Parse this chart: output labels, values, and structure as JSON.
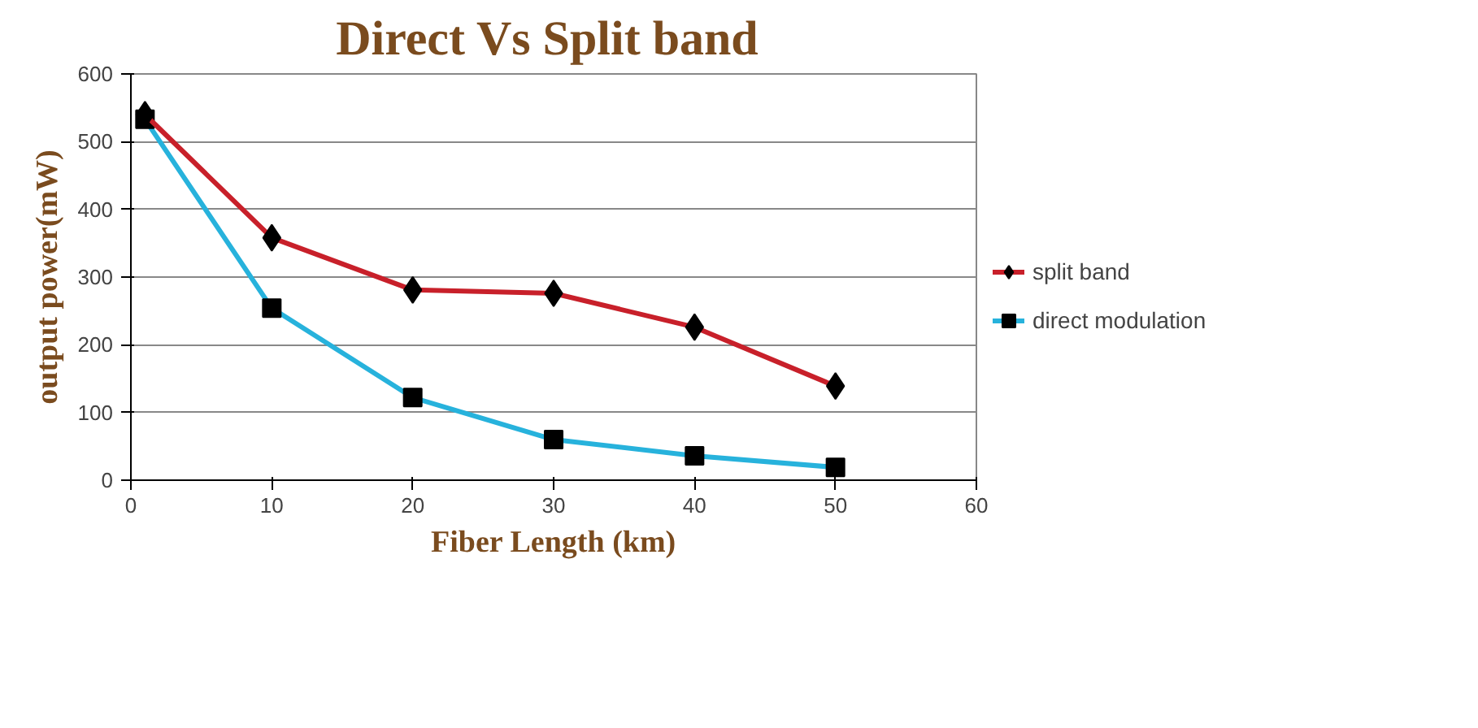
{
  "chart_data": {
    "type": "line",
    "title": "Direct  Vs Split band",
    "xlabel": "Fiber Length (km)",
    "ylabel": "output power(mW)",
    "x": [
      1,
      10,
      20,
      30,
      40,
      50
    ],
    "series": [
      {
        "name": "split band",
        "color": "#c8202a",
        "marker": "diamond",
        "values": [
          540,
          358,
          281,
          276,
          226,
          139
        ]
      },
      {
        "name": "direct modulation",
        "color": "#27b2dc",
        "marker": "square",
        "values": [
          533,
          254,
          122,
          60,
          36,
          19
        ]
      }
    ],
    "xlim": [
      0,
      60
    ],
    "xticks": [
      0,
      10,
      20,
      30,
      40,
      50,
      60
    ],
    "ylim": [
      0,
      600
    ],
    "yticks": [
      0,
      100,
      200,
      300,
      400,
      500,
      600
    ],
    "grid": "y",
    "legend": "right"
  }
}
